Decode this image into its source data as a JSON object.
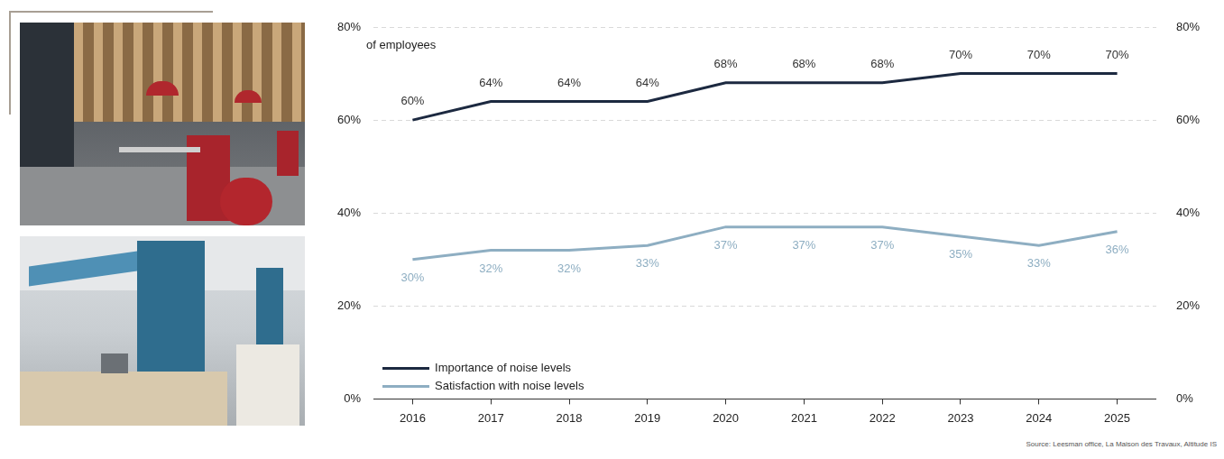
{
  "chart_data": {
    "type": "line",
    "annotation": "of employees",
    "source": "Source: Leesman office, La Maison des Travaux, Altitude IS",
    "categories": [
      "2016",
      "2017",
      "2018",
      "2019",
      "2020",
      "2021",
      "2022",
      "2023",
      "2024",
      "2025"
    ],
    "series": [
      {
        "name": "Importance of noise levels",
        "color": "#1c2940",
        "values": [
          60,
          64,
          64,
          64,
          68,
          68,
          68,
          70,
          70,
          70
        ],
        "value_labels": [
          "60%",
          "64%",
          "64%",
          "64%",
          "68%",
          "68%",
          "68%",
          "70%",
          "70%",
          "70%"
        ]
      },
      {
        "name": "Satisfaction with noise levels",
        "color": "#8eaec2",
        "values": [
          30,
          32,
          32,
          33,
          37,
          37,
          37,
          35,
          33,
          36
        ],
        "value_labels": [
          "30%",
          "32%",
          "32%",
          "33%",
          "37%",
          "37%",
          "37%",
          "35%",
          "33%",
          "36%"
        ]
      }
    ],
    "ylim": [
      0,
      80
    ],
    "yticks": [
      {
        "value": 0,
        "label": "0%"
      },
      {
        "value": 20,
        "label": "20%"
      },
      {
        "value": 40,
        "label": "40%"
      },
      {
        "value": 60,
        "label": "60%"
      },
      {
        "value": 80,
        "label": "80%"
      }
    ],
    "y2lim": [
      0,
      80
    ],
    "y2ticks": [
      {
        "value": 0,
        "label": "0%"
      },
      {
        "value": 20,
        "label": "20%"
      },
      {
        "value": 40,
        "label": "40%"
      },
      {
        "value": 60,
        "label": "60%"
      },
      {
        "value": 80,
        "label": "80%"
      }
    ],
    "grid": true,
    "legend": "lower left",
    "data_labels": true
  }
}
